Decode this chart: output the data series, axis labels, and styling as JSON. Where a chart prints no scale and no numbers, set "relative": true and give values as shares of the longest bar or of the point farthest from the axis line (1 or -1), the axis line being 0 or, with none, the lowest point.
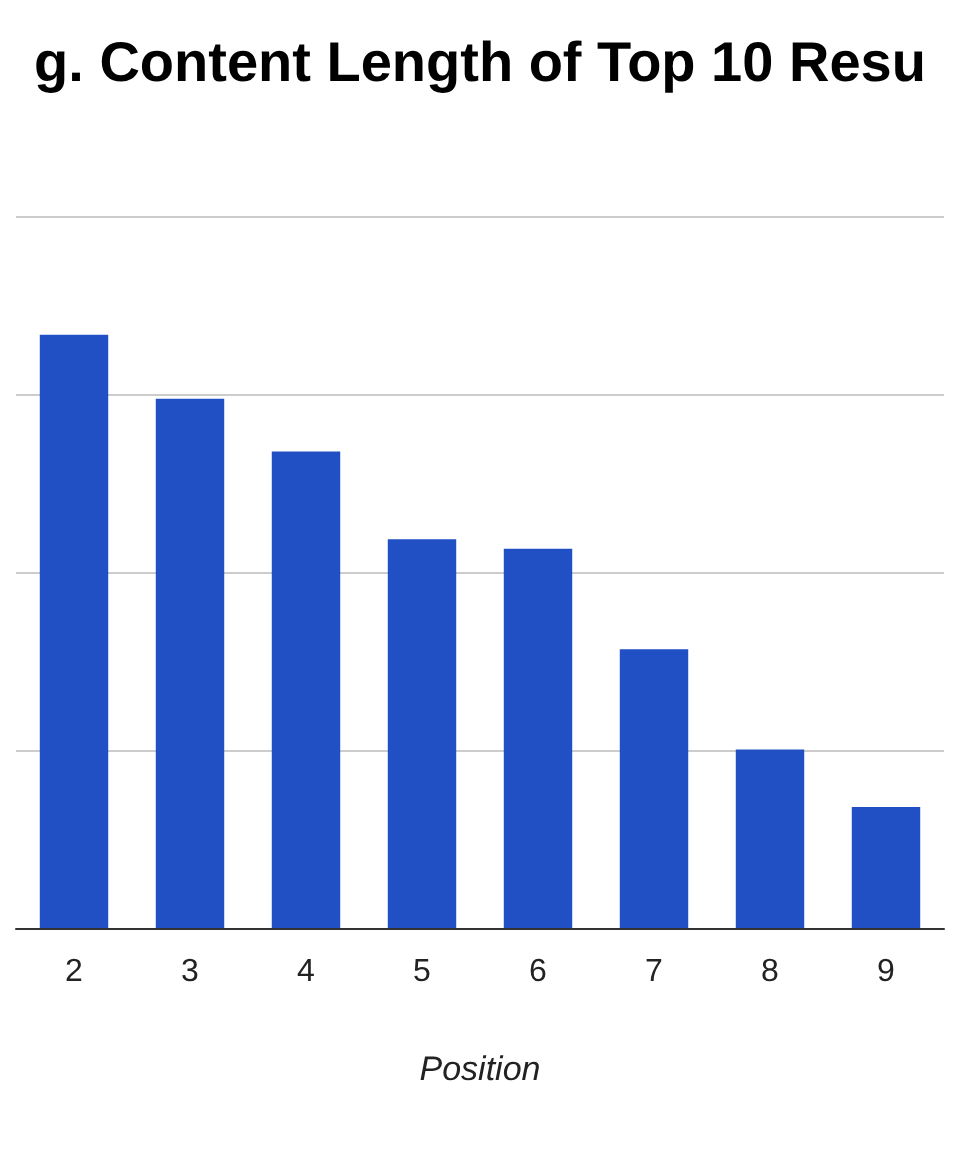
{
  "chart_data": {
    "type": "bar",
    "title": "g. Content Length of Top 10 Resu",
    "xlabel": "Position",
    "categories": [
      "2",
      "3",
      "4",
      "5",
      "6",
      "7",
      "8",
      "9"
    ],
    "values": [
      1,
      0.892,
      0.803,
      0.655,
      0.639,
      0.47,
      0.301,
      0.204
    ],
    "color": "#2150c4",
    "relative": true,
    "grid": "y"
  }
}
